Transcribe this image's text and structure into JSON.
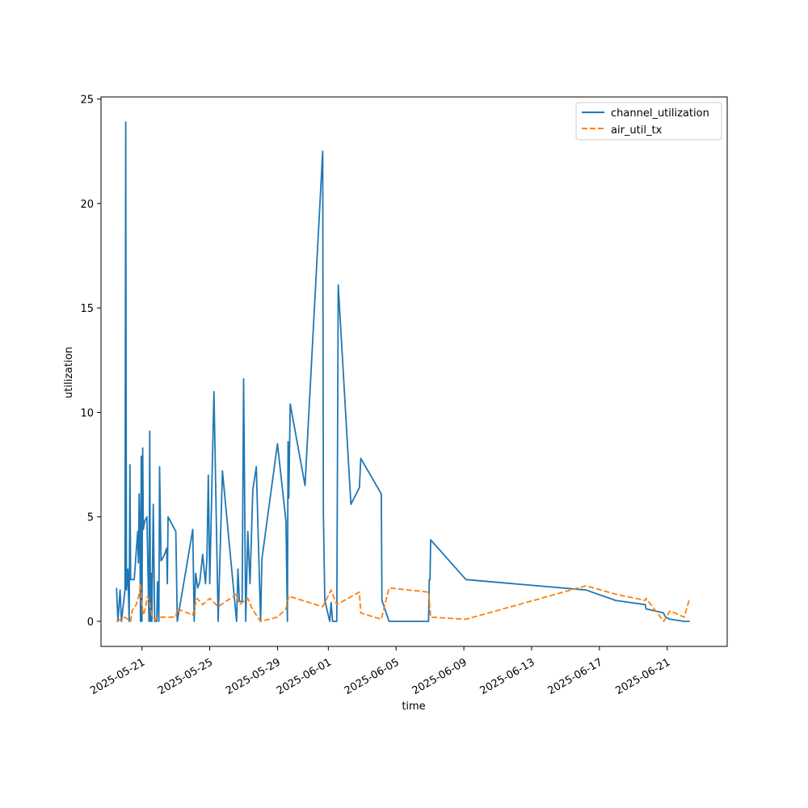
{
  "chart_data": {
    "type": "line",
    "title": "",
    "xlabel": "time",
    "ylabel": "utilization",
    "x_type": "date",
    "xlim": [
      "2025-05-18T14:00",
      "2025-06-24T13:00"
    ],
    "ylim": [
      -1.2,
      25.1
    ],
    "x_ticks": [
      "2025-05-21",
      "2025-05-25",
      "2025-05-29",
      "2025-06-01",
      "2025-06-05",
      "2025-06-09",
      "2025-06-13",
      "2025-06-17",
      "2025-06-21"
    ],
    "y_ticks": [
      0,
      5,
      10,
      15,
      20,
      25
    ],
    "grid": false,
    "legend": "top-right",
    "series": [
      {
        "name": "channel_utilization",
        "color": "#1f77b4",
        "dash": "solid",
        "x": [
          "2025-05-19T12:00",
          "2025-05-19T14:00",
          "2025-05-19T17:00",
          "2025-05-19T19:00",
          "2025-05-20T00:00",
          "2025-05-20T01:00",
          "2025-05-20T02:00",
          "2025-05-20T04:00",
          "2025-05-20T06:00",
          "2025-05-20T07:00",
          "2025-05-20T08:00",
          "2025-05-20T09:00",
          "2025-05-20T11:00",
          "2025-05-20T12:00",
          "2025-05-20T13:00",
          "2025-05-20T18:00",
          "2025-05-20T19:00",
          "2025-05-20T20:00",
          "2025-05-20T21:00",
          "2025-05-20T22:00",
          "2025-05-20T23:00",
          "2025-05-21T00:00",
          "2025-05-21T01:00",
          "2025-05-21T02:00",
          "2025-05-21T04:00",
          "2025-05-21T07:00",
          "2025-05-21T10:00",
          "2025-05-21T11:00",
          "2025-05-21T12:00",
          "2025-05-21T13:00",
          "2025-05-21T14:00",
          "2025-05-21T16:00",
          "2025-05-21T18:00",
          "2025-05-21T21:00",
          "2025-05-21T22:00",
          "2025-05-22T00:00",
          "2025-05-22T01:00",
          "2025-05-22T03:00",
          "2025-05-22T05:00",
          "2025-05-22T08:00",
          "2025-05-22T10:00",
          "2025-05-22T11:00",
          "2025-05-22T12:00",
          "2025-05-22T13:00",
          "2025-05-23T00:00",
          "2025-05-23T02:00",
          "2025-05-24T00:00",
          "2025-05-24T02:00",
          "2025-05-24T04:00",
          "2025-05-24T07:00",
          "2025-05-24T10:00",
          "2025-05-24T14:00",
          "2025-05-24T18:00",
          "2025-05-24T20:00",
          "2025-05-24T22:00",
          "2025-05-25T00:00",
          "2025-05-25T06:00",
          "2025-05-25T12:00",
          "2025-05-25T18:00",
          "2025-05-26T14:00",
          "2025-05-26T16:00",
          "2025-05-26T18:00",
          "2025-05-26T20:00",
          "2025-05-26T22:00",
          "2025-05-27T00:00",
          "2025-05-27T03:00",
          "2025-05-27T06:00",
          "2025-05-27T09:00",
          "2025-05-27T13:00",
          "2025-05-27T18:00",
          "2025-05-28T00:00",
          "2025-05-28T02:00",
          "2025-05-29T00:00",
          "2025-05-29T12:00",
          "2025-05-29T14:00",
          "2025-05-29T15:00",
          "2025-05-29T16:00",
          "2025-05-29T18:00",
          "2025-05-30T15:00",
          "2025-05-31T16:00",
          "2025-05-31T17:00",
          "2025-05-31T19:00",
          "2025-06-01T02:00",
          "2025-06-01T04:00",
          "2025-06-01T06:00",
          "2025-06-01T12:00",
          "2025-06-01T14:00",
          "2025-06-02T08:00",
          "2025-06-02T20:00",
          "2025-06-02T22:00",
          "2025-06-04T03:00",
          "2025-06-04T04:00",
          "2025-06-04T14:00",
          "2025-06-06T22:00",
          "2025-06-06T23:00",
          "2025-06-07T00:00",
          "2025-06-07T01:00",
          "2025-06-09T03:00",
          "2025-06-16T05:00",
          "2025-06-17T23:00",
          "2025-06-19T17:00",
          "2025-06-19T18:00",
          "2025-06-20T19:00",
          "2025-06-20T20:00",
          "2025-06-20T22:00",
          "2025-06-21T04:00",
          "2025-06-22T00:00",
          "2025-06-22T07:00",
          "2025-06-22T08:00"
        ],
        "values": [
          1.6,
          0,
          1.5,
          0,
          1.5,
          23.9,
          1.5,
          2.5,
          0,
          7.5,
          2.0,
          2.0,
          2.0,
          2.0,
          2.0,
          4.3,
          2.8,
          6.1,
          4.2,
          0,
          7.9,
          0,
          8.3,
          4.4,
          4.8,
          5.0,
          0,
          9.1,
          0,
          2.3,
          0,
          5.6,
          0,
          0,
          1.9,
          0,
          7.4,
          2.9,
          3.0,
          3.2,
          3.4,
          3.5,
          1.8,
          5.0,
          4.3,
          0,
          4.4,
          0,
          2.3,
          1.6,
          1.9,
          3.2,
          1.8,
          3.0,
          7.0,
          1.8,
          11.0,
          0,
          7.2,
          0,
          2.5,
          0.95,
          0.95,
          0.95,
          11.6,
          0,
          4.3,
          1.8,
          6.3,
          7.4,
          0,
          3.0,
          8.5,
          4.8,
          0,
          8.6,
          5.9,
          10.4,
          6.5,
          22.5,
          5.2,
          1.0,
          0,
          0.9,
          0,
          0,
          16.1,
          5.6,
          6.4,
          7.8,
          6.1,
          1.0,
          0,
          0,
          2.0,
          2.0,
          3.9,
          2.0,
          1.5,
          1.0,
          0.8,
          0.6,
          0.4,
          0.3,
          0.2,
          0.1,
          0.0,
          0.0,
          0.0
        ]
      },
      {
        "name": "air_util_tx",
        "color": "#ff7f0e",
        "dash": "dashed",
        "x": [
          "2025-05-19T12:00",
          "2025-05-20T00:00",
          "2025-05-20T08:00",
          "2025-05-20T10:00",
          "2025-05-20T16:00",
          "2025-05-20T20:00",
          "2025-05-20T22:00",
          "2025-05-21T00:00",
          "2025-05-21T02:00",
          "2025-05-21T04:00",
          "2025-05-21T08:00",
          "2025-05-21T10:00",
          "2025-05-21T14:00",
          "2025-05-21T18:00",
          "2025-05-22T00:00",
          "2025-05-23T00:00",
          "2025-05-23T02:00",
          "2025-05-24T00:00",
          "2025-05-24T06:00",
          "2025-05-24T14:00",
          "2025-05-25T00:00",
          "2025-05-25T12:00",
          "2025-05-26T14:00",
          "2025-05-26T18:00",
          "2025-05-27T06:00",
          "2025-05-27T12:00",
          "2025-05-28T00:00",
          "2025-05-29T00:00",
          "2025-05-29T12:00",
          "2025-05-29T16:00",
          "2025-05-31T16:00",
          "2025-06-01T04:00",
          "2025-06-01T12:00",
          "2025-06-02T20:00",
          "2025-06-02T22:00",
          "2025-06-04T03:00",
          "2025-06-04T14:00",
          "2025-06-06T22:00",
          "2025-06-07T01:00",
          "2025-06-09T03:00",
          "2025-06-16T05:00",
          "2025-06-17T23:00",
          "2025-06-19T17:00",
          "2025-06-19T18:00",
          "2025-06-20T19:00",
          "2025-06-21T04:00",
          "2025-06-22T00:00",
          "2025-06-22T07:00",
          "2025-06-22T08:00"
        ],
        "values": [
          0.0,
          0.2,
          0.0,
          0.5,
          0.8,
          1.3,
          1.8,
          0.8,
          0.3,
          0.5,
          1.2,
          1.0,
          0.3,
          0.1,
          0.2,
          0.2,
          0.6,
          0.3,
          1.1,
          0.8,
          1.1,
          0.7,
          1.3,
          0.8,
          1.1,
          0.6,
          0.0,
          0.2,
          0.6,
          1.2,
          0.7,
          1.5,
          0.8,
          1.4,
          0.4,
          0.1,
          1.6,
          1.4,
          0.2,
          0.1,
          1.7,
          1.3,
          1.0,
          1.1,
          0.0,
          0.5,
          0.2,
          1.0,
          0.9
        ]
      }
    ]
  }
}
